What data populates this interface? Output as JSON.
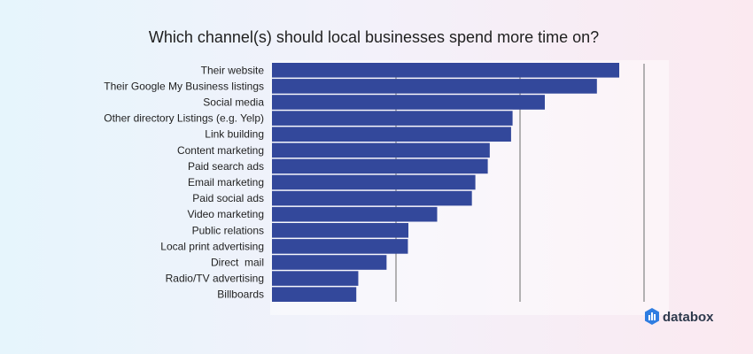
{
  "chart_data": {
    "type": "bar",
    "orientation": "horizontal",
    "title": "Which channel(s) should local businesses spend more time on?",
    "categories": [
      "Their website",
      "Their Google My Business listings",
      "Social media",
      "Other directory Listings (e.g. Yelp)",
      "Link building",
      "Content marketing",
      "Paid search ads",
      "Email marketing",
      "Paid social ads",
      "Video marketing",
      "Public relations",
      "Local print advertising",
      "Direct  mail",
      "Radio/TV advertising",
      "Billboards"
    ],
    "values": [
      70,
      65.5,
      55,
      48.5,
      48.2,
      43.9,
      43.5,
      41,
      40.3,
      33.3,
      27.5,
      27.4,
      23.1,
      17.4,
      17
    ],
    "xlim": [
      0,
      75
    ],
    "grid": true,
    "bar_color": "#33489b"
  },
  "brand": {
    "name": "databox",
    "color": "#2e3a4d",
    "icon": "databox-logo-icon"
  }
}
